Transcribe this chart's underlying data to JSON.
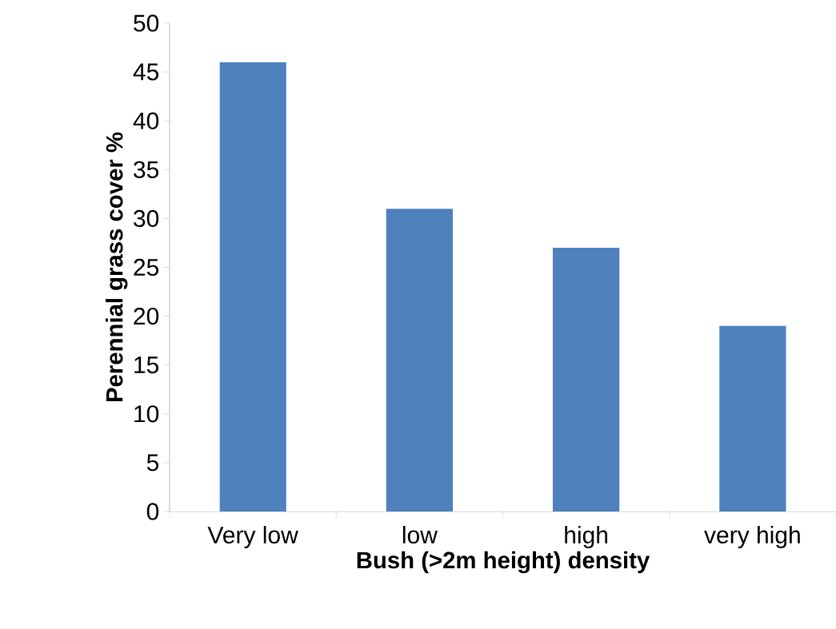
{
  "chart_data": {
    "type": "bar",
    "xlabel": "Bush (>2m height)  density",
    "ylabel": "Perennial grass cover %",
    "categories": [
      "Very low",
      "low",
      "high",
      "very high"
    ],
    "values": [
      46,
      31,
      27,
      19
    ],
    "color": "#4f81bd",
    "ylim": [
      0,
      50
    ],
    "yticks": [
      0,
      5,
      10,
      15,
      20,
      25,
      30,
      35,
      40,
      45,
      50
    ]
  }
}
